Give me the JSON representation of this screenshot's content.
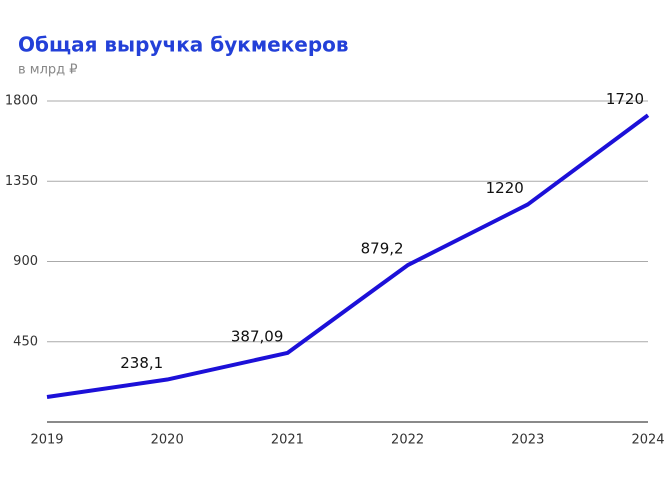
{
  "chart_data": {
    "type": "line",
    "title": "Общая выручка букмекеров",
    "subtitle": "в млрд ₽",
    "x": [
      2019,
      2020,
      2021,
      2022,
      2023,
      2024
    ],
    "xlim": [
      2019,
      2024
    ],
    "xticks": [
      2019,
      2020,
      2021,
      2022,
      2023,
      2024
    ],
    "series": [
      {
        "color": "#1c10d8",
        "values": [
          140,
          238.1,
          387.09,
          879.2,
          1220,
          1720
        ],
        "value_labels": [
          null,
          "238,1",
          "387,09",
          "879,2",
          "1220",
          "1720"
        ]
      }
    ],
    "ylim": [
      0,
      1800
    ],
    "yticks": [
      450,
      900,
      1350,
      1800
    ],
    "grid": true
  }
}
